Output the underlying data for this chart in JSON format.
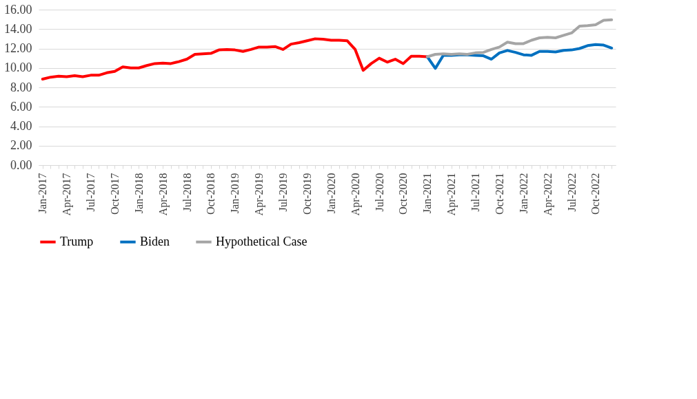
{
  "chart_data": {
    "type": "line",
    "categories": [
      "Jan-2017",
      null,
      null,
      "Apr-2017",
      null,
      null,
      "Jul-2017",
      null,
      null,
      "Oct-2017",
      null,
      null,
      "Jan-2018",
      null,
      null,
      "Apr-2018",
      null,
      null,
      "Jul-2018",
      null,
      null,
      "Oct-2018",
      null,
      null,
      "Jan-2019",
      null,
      null,
      "Apr-2019",
      null,
      null,
      "Jul-2019",
      null,
      null,
      "Oct-2019",
      null,
      null,
      "Jan-2020",
      null,
      null,
      "Apr-2020",
      null,
      null,
      "Jul-2020",
      null,
      null,
      "Oct-2020",
      null,
      null,
      "Jan-2021",
      null,
      null,
      "Apr-2021",
      null,
      null,
      "Jul-2021",
      null,
      null,
      "Oct-2021",
      null,
      null,
      "Jan-2022",
      null,
      null,
      "Apr-2022",
      null,
      null,
      "Jul-2022",
      null,
      null,
      "Oct-2022",
      null,
      null
    ],
    "ylim": [
      0,
      16
    ],
    "yticks": [
      {
        "value": 0,
        "label": "0.00"
      },
      {
        "value": 2,
        "label": "2.00"
      },
      {
        "value": 4,
        "label": "4.00"
      },
      {
        "value": 6,
        "label": "6.00"
      },
      {
        "value": 8,
        "label": "8.00"
      },
      {
        "value": 10,
        "label": "10.00"
      },
      {
        "value": 12,
        "label": "12.00"
      },
      {
        "value": 14,
        "label": "14.00"
      },
      {
        "value": 16,
        "label": "16.00"
      }
    ],
    "grid": "y",
    "legend": "bottom",
    "marker": "none",
    "line_style": "solid",
    "series": [
      {
        "name": "Trump",
        "color": "#ff0000",
        "values": [
          8.85,
          9.05,
          9.15,
          9.1,
          9.2,
          9.1,
          9.25,
          9.25,
          9.5,
          9.65,
          10.1,
          10.0,
          10.0,
          10.25,
          10.45,
          10.5,
          10.45,
          10.65,
          10.9,
          11.4,
          11.45,
          11.5,
          11.85,
          11.9,
          11.85,
          11.7,
          11.9,
          12.15,
          12.15,
          12.2,
          11.9,
          12.45,
          12.6,
          12.8,
          13.0,
          12.95,
          12.85,
          12.85,
          12.8,
          11.9,
          9.75,
          10.45,
          11.0,
          10.6,
          10.9,
          10.45,
          11.2,
          11.2,
          11.15,
          null,
          null,
          null,
          null,
          null,
          null,
          null,
          null,
          null,
          null,
          null,
          null,
          null,
          null,
          null,
          null,
          null,
          null,
          null,
          null,
          null,
          null,
          null
        ]
      },
      {
        "name": "Biden",
        "color": "#0070c0",
        "values": [
          null,
          null,
          null,
          null,
          null,
          null,
          null,
          null,
          null,
          null,
          null,
          null,
          null,
          null,
          null,
          null,
          null,
          null,
          null,
          null,
          null,
          null,
          null,
          null,
          null,
          null,
          null,
          null,
          null,
          null,
          null,
          null,
          null,
          null,
          null,
          null,
          null,
          null,
          null,
          null,
          null,
          null,
          null,
          null,
          null,
          null,
          null,
          null,
          11.15,
          9.95,
          11.3,
          11.3,
          11.35,
          11.35,
          11.3,
          11.25,
          10.9,
          11.55,
          11.8,
          11.6,
          11.35,
          11.3,
          11.7,
          11.7,
          11.65,
          11.8,
          11.85,
          12.0,
          12.3,
          12.4,
          12.35,
          12.05
        ]
      },
      {
        "name": "Hypothetical Case",
        "color": "#a5a5a5",
        "values": [
          null,
          null,
          null,
          null,
          null,
          null,
          null,
          null,
          null,
          null,
          null,
          null,
          null,
          null,
          null,
          null,
          null,
          null,
          null,
          null,
          null,
          null,
          null,
          null,
          null,
          null,
          null,
          null,
          null,
          null,
          null,
          null,
          null,
          null,
          null,
          null,
          null,
          null,
          null,
          null,
          null,
          null,
          null,
          null,
          null,
          null,
          null,
          null,
          11.15,
          11.4,
          11.45,
          11.4,
          11.45,
          11.4,
          11.55,
          11.6,
          11.9,
          12.15,
          12.65,
          12.5,
          12.5,
          12.85,
          13.1,
          13.15,
          13.1,
          13.35,
          13.6,
          14.3,
          14.35,
          14.45,
          14.9,
          14.95
        ]
      }
    ]
  }
}
